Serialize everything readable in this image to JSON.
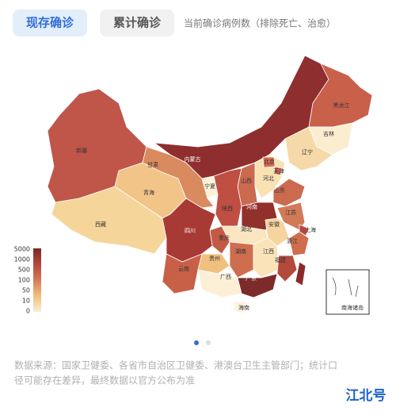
{
  "tabs": [
    {
      "label": "现存确诊",
      "active": true
    },
    {
      "label": "累计确诊",
      "active": false
    }
  ],
  "note": "当前确诊病例数（排除死亡、治愈）",
  "legend": {
    "ticks": [
      5000,
      1000,
      500,
      100,
      50,
      10,
      0
    ],
    "colors": [
      "#7a2828",
      "#b5473d",
      "#d67a58",
      "#f0c080",
      "#fbeed3"
    ]
  },
  "regions": [
    {
      "name": "新疆",
      "color": "#c0554a"
    },
    {
      "name": "西藏",
      "color": "#f5d59a"
    },
    {
      "name": "青海",
      "color": "#f2c488"
    },
    {
      "name": "甘肃",
      "color": "#d98a5e"
    },
    {
      "name": "内蒙古",
      "color": "#8e2e2e"
    },
    {
      "name": "黑龙江",
      "color": "#c9604a"
    },
    {
      "name": "吉林",
      "color": "#fbeed0"
    },
    {
      "name": "辽宁",
      "color": "#f6d9a8"
    },
    {
      "name": "河北",
      "color": "#f8e2b4"
    },
    {
      "name": "北京",
      "color": "#d46b50"
    },
    {
      "name": "天津",
      "color": "#ca6148"
    },
    {
      "name": "山西",
      "color": "#cb6a4f"
    },
    {
      "name": "宁夏",
      "color": "#fff1d6"
    },
    {
      "name": "陕西",
      "color": "#bf4f43"
    },
    {
      "name": "山东",
      "color": "#cb6a4f"
    },
    {
      "name": "河南",
      "color": "#92302c"
    },
    {
      "name": "江苏",
      "color": "#d27a58"
    },
    {
      "name": "安徽",
      "color": "#f6d4a0"
    },
    {
      "name": "上海",
      "color": "#b44840"
    },
    {
      "name": "浙江",
      "color": "#cf6d4f"
    },
    {
      "name": "湖北",
      "color": "#f9e6c0"
    },
    {
      "name": "重庆",
      "color": "#c35a46"
    },
    {
      "name": "四川",
      "color": "#a83a36"
    },
    {
      "name": "贵州",
      "color": "#f0c07e"
    },
    {
      "name": "云南",
      "color": "#c86048"
    },
    {
      "name": "湖南",
      "color": "#cf6d4f"
    },
    {
      "name": "江西",
      "color": "#fae3b8"
    },
    {
      "name": "福建",
      "color": "#b4493d"
    },
    {
      "name": "广西",
      "color": "#fbefd6"
    },
    {
      "name": "广东",
      "color": "#7d2a2a"
    },
    {
      "name": "海南",
      "color": "#fdf3e0"
    },
    {
      "color": "#8a2b2b"
    }
  ],
  "inset_label": "南海诸岛",
  "source": [
    "数据来源：国家卫健委、各省市自治区卫健委、港澳台卫生主管部门；统计口",
    "径可能存在差异，最终数据以官方公布为准"
  ],
  "watermark": "江北号"
}
